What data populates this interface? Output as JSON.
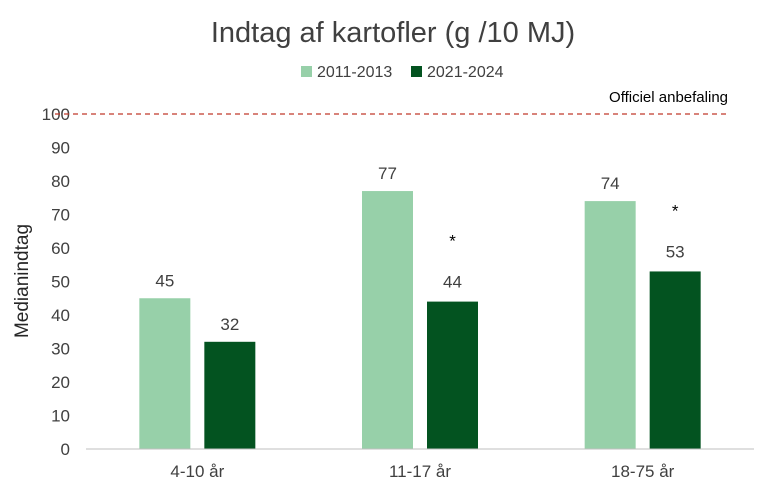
{
  "chart_data": {
    "type": "bar",
    "title": "Indtag af kartofler (g /10 MJ)",
    "ylabel": "Medianindtag",
    "xlabel": "",
    "categories": [
      "4-10 år",
      "11-17 år",
      "18-75 år"
    ],
    "series": [
      {
        "name": "2011-2013",
        "values": [
          45,
          77,
          74
        ],
        "color": "#97d0a9"
      },
      {
        "name": "2021-2024",
        "values": [
          32,
          44,
          53
        ],
        "color": "#035320"
      }
    ],
    "ylim": [
      0,
      100
    ],
    "yticks": [
      0,
      10,
      20,
      30,
      40,
      50,
      60,
      70,
      80,
      90,
      100
    ],
    "grid": false,
    "legend_position": "top-center",
    "reference_line": {
      "value": 100,
      "label": "Officiel anbefaling",
      "color": "#c0392b",
      "style": "dashed"
    },
    "significance_markers": [
      {
        "category": "11-17 år",
        "series": "2021-2024",
        "symbol": "*"
      },
      {
        "category": "18-75 år",
        "series": "2021-2024",
        "symbol": "*"
      }
    ]
  }
}
